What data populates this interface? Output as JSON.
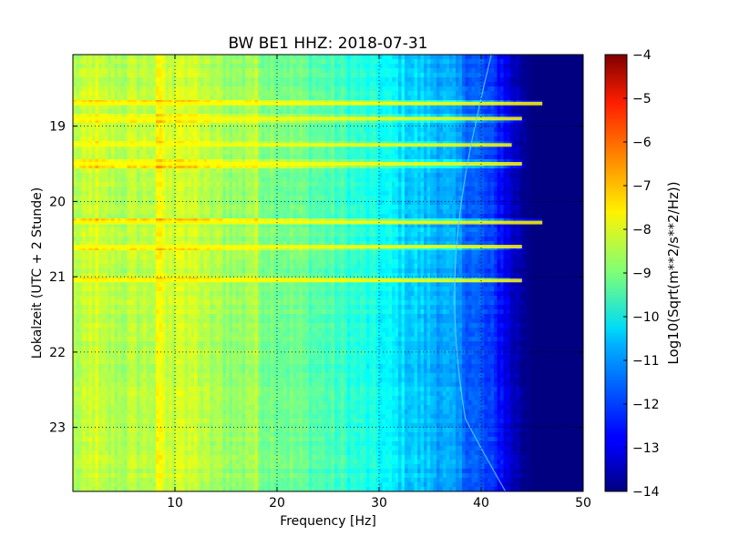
{
  "chart_data": {
    "type": "heatmap",
    "title": "BW BE1 HHZ: 2018-07-31",
    "xlabel": "Frequency [Hz]",
    "ylabel": "Lokalzeit (UTC + 2 Stunde)",
    "xlim": [
      0,
      50
    ],
    "ylim": [
      18.05,
      23.85
    ],
    "y_inverted": true,
    "grid": true,
    "colormap": "jet",
    "x_ticks": [
      {
        "value": 10,
        "label": "10"
      },
      {
        "value": 20,
        "label": "20"
      },
      {
        "value": 30,
        "label": "30"
      },
      {
        "value": 40,
        "label": "40"
      },
      {
        "value": 50,
        "label": "50"
      }
    ],
    "y_ticks": [
      {
        "value": 19,
        "label": "19"
      },
      {
        "value": 20,
        "label": "20"
      },
      {
        "value": 21,
        "label": "21"
      },
      {
        "value": 22,
        "label": "22"
      },
      {
        "value": 23,
        "label": "23"
      }
    ],
    "colorbar": {
      "label": "Log10(Sqrt(m**2/s**2/Hz))",
      "range": [
        -14,
        -4
      ],
      "ticks": [
        {
          "value": -4,
          "label": "−4"
        },
        {
          "value": -5,
          "label": "−5"
        },
        {
          "value": -6,
          "label": "−6"
        },
        {
          "value": -7,
          "label": "−7"
        },
        {
          "value": -8,
          "label": "−8"
        },
        {
          "value": -9,
          "label": "−9"
        },
        {
          "value": -10,
          "label": "−10"
        },
        {
          "value": -11,
          "label": "−11"
        },
        {
          "value": -12,
          "label": "−12"
        },
        {
          "value": -13,
          "label": "−13"
        },
        {
          "value": -14,
          "label": "−14"
        }
      ]
    },
    "spectrum_profile": [
      {
        "freq": 0,
        "value": -8.5
      },
      {
        "freq": 5,
        "value": -8.5
      },
      {
        "freq": 10,
        "value": -8.3
      },
      {
        "freq": 15,
        "value": -8.7
      },
      {
        "freq": 20,
        "value": -9.0
      },
      {
        "freq": 25,
        "value": -9.5
      },
      {
        "freq": 30,
        "value": -10.2
      },
      {
        "freq": 33,
        "value": -10.7
      },
      {
        "freq": 36,
        "value": -11.0
      },
      {
        "freq": 38,
        "value": -11.5
      },
      {
        "freq": 40,
        "value": -12.0
      },
      {
        "freq": 42,
        "value": -12.6
      },
      {
        "freq": 43,
        "value": -13.3
      },
      {
        "freq": 45,
        "value": -14.0
      },
      {
        "freq": 50,
        "value": -14.0
      }
    ],
    "horizontal_bands": [
      {
        "time": 18.7,
        "fmax": 46,
        "boost": 0.9
      },
      {
        "time": 18.9,
        "fmax": 44,
        "boost": 0.6
      },
      {
        "time": 19.25,
        "fmax": 43,
        "boost": 0.6
      },
      {
        "time": 19.5,
        "fmax": 44,
        "boost": 0.8
      },
      {
        "time": 20.28,
        "fmax": 46,
        "boost": 1.0
      },
      {
        "time": 20.6,
        "fmax": 44,
        "boost": 0.7
      },
      {
        "time": 21.05,
        "fmax": 44,
        "boost": 0.8
      }
    ],
    "vertical_bands": [
      {
        "freq": 2,
        "boost": 0.3
      },
      {
        "freq": 8.5,
        "boost": 0.4
      },
      {
        "freq": 10.5,
        "boost": 0.4
      },
      {
        "freq": 12,
        "boost": 0.25
      },
      {
        "freq": 17.5,
        "boost": 0.3
      }
    ]
  }
}
